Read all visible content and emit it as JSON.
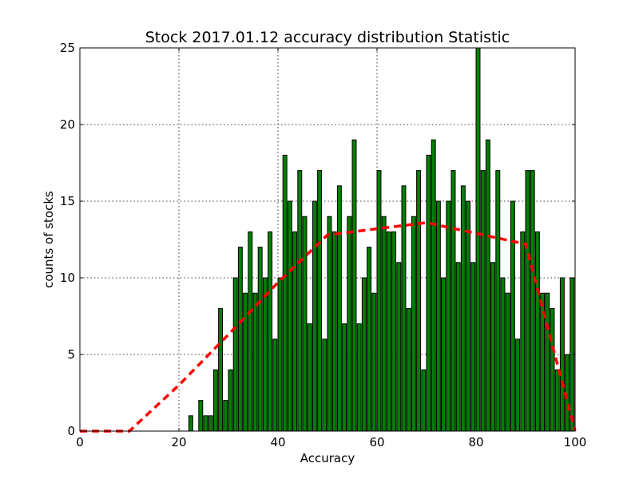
{
  "chart_data": {
    "type": "bar",
    "title": "Stock 2017.01.12 accuracy distribution Statistic",
    "xlabel": "Accuracy",
    "ylabel": "counts of stocks",
    "xlim": [
      0,
      100
    ],
    "ylim": [
      0,
      25
    ],
    "xticks": [
      0,
      20,
      40,
      60,
      80,
      100
    ],
    "yticks": [
      0,
      5,
      10,
      15,
      20,
      25
    ],
    "xtick_labels": [
      "0",
      "20",
      "40",
      "60",
      "80",
      "100"
    ],
    "ytick_labels": [
      "0",
      "5",
      "10",
      "15",
      "20",
      "25"
    ],
    "grid": true,
    "bar_color": "#007f00",
    "line_color": "#ff0000",
    "bars": {
      "x": [
        0,
        1,
        2,
        3,
        4,
        5,
        6,
        7,
        8,
        9,
        10,
        11,
        12,
        13,
        14,
        15,
        16,
        17,
        18,
        19,
        20,
        21,
        22,
        23,
        24,
        25,
        26,
        27,
        28,
        29,
        30,
        31,
        32,
        33,
        34,
        35,
        36,
        37,
        38,
        39,
        40,
        41,
        42,
        43,
        44,
        45,
        46,
        47,
        48,
        49,
        50,
        51,
        52,
        53,
        54,
        55,
        56,
        57,
        58,
        59,
        60,
        61,
        62,
        63,
        64,
        65,
        66,
        67,
        68,
        69,
        70,
        71,
        72,
        73,
        73,
        74,
        75,
        76,
        77,
        78,
        79,
        80,
        81,
        82,
        83,
        84,
        85,
        86,
        87,
        88,
        89,
        90,
        91,
        92,
        93,
        94,
        95,
        96,
        97,
        98,
        99
      ],
      "values": [
        0,
        0,
        0,
        0,
        0,
        0,
        0,
        0,
        0,
        0,
        0,
        0,
        0,
        0,
        0,
        0,
        0,
        0,
        0,
        0,
        0,
        0,
        1,
        0,
        2,
        1,
        1,
        4,
        8,
        2,
        4,
        10,
        12,
        9,
        13,
        9,
        12,
        10,
        13,
        6,
        10,
        18,
        15,
        13,
        17,
        14,
        7,
        15,
        17,
        6,
        14,
        13,
        16,
        7,
        14,
        19,
        7,
        10,
        12,
        9,
        17,
        14,
        13,
        13,
        11,
        16,
        8,
        14,
        17,
        4,
        18,
        19,
        15,
        10,
        10,
        15,
        17,
        11,
        16,
        15,
        11,
        25,
        17,
        19,
        11,
        17,
        10,
        9,
        15,
        6,
        13,
        17,
        17,
        13,
        9,
        9,
        8,
        4,
        10,
        5,
        10
      ]
    },
    "fit_curve": {
      "x": [
        0,
        10,
        20,
        30,
        40,
        50,
        60,
        70,
        80,
        90,
        100
      ],
      "values": [
        0,
        0,
        3,
        6.3,
        9.7,
        12.8,
        13.2,
        13.6,
        12.9,
        12.2,
        0
      ]
    }
  }
}
